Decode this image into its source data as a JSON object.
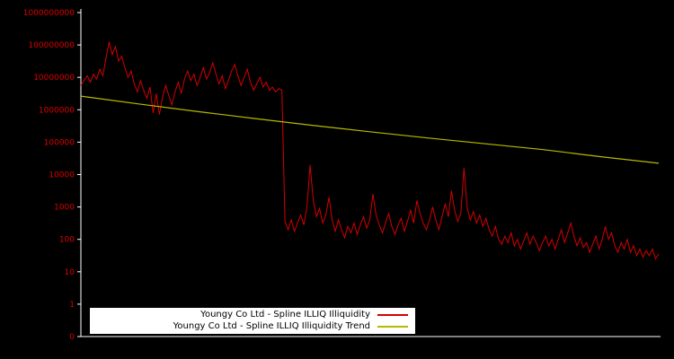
{
  "chart": {
    "background": "#000000",
    "axis_color": "#ffffff",
    "tick_label_color": "#dd0000",
    "legend": {
      "entries": [
        {
          "label": "Youngy Co Ltd - Spline ILLIQ Illiquidity",
          "color": "#d40000"
        },
        {
          "label": "Youngy Co Ltd - Spline ILLIQ Illiquidity Trend",
          "color": "#b8b800"
        }
      ]
    }
  },
  "chart_data": {
    "type": "line",
    "title": "",
    "xlabel": "",
    "ylabel": "",
    "y_scale": "log",
    "grid": false,
    "legend_position": "bottom-center",
    "y_tick_labels": [
      "0",
      "1",
      "10",
      "100",
      "1000",
      "10000",
      "100000",
      "1000000",
      "10000000",
      "100000000",
      "1000000000"
    ],
    "y_tick_values": [
      0,
      1,
      10,
      100,
      1000,
      10000,
      100000,
      1000000,
      10000000,
      100000000,
      1000000000
    ],
    "series": [
      {
        "name": "Youngy Co Ltd - Spline ILLIQ Illiquidity",
        "color": "#d40000",
        "log10_values": [
          6.75,
          6.9,
          7.05,
          6.85,
          7.1,
          6.95,
          7.25,
          7.05,
          7.6,
          8.1,
          7.7,
          7.95,
          7.5,
          7.65,
          7.3,
          7.0,
          7.2,
          6.8,
          6.55,
          6.9,
          6.6,
          6.35,
          6.7,
          5.9,
          6.5,
          5.85,
          6.4,
          6.75,
          6.45,
          6.15,
          6.55,
          6.85,
          6.5,
          6.95,
          7.2,
          6.9,
          7.1,
          6.75,
          7.0,
          7.3,
          6.95,
          7.15,
          7.45,
          7.1,
          6.8,
          7.05,
          6.65,
          6.9,
          7.2,
          7.4,
          7.05,
          6.75,
          7.0,
          7.25,
          6.85,
          6.6,
          6.8,
          7.0,
          6.7,
          6.85,
          6.6,
          6.7,
          6.55,
          6.65,
          6.6,
          2.55,
          2.3,
          2.6,
          2.25,
          2.5,
          2.75,
          2.45,
          3.0,
          4.3,
          3.2,
          2.7,
          2.95,
          2.5,
          2.75,
          3.3,
          2.6,
          2.25,
          2.6,
          2.3,
          2.05,
          2.4,
          2.2,
          2.5,
          2.15,
          2.45,
          2.7,
          2.35,
          2.6,
          3.4,
          2.75,
          2.45,
          2.2,
          2.5,
          2.8,
          2.4,
          2.15,
          2.45,
          2.65,
          2.25,
          2.55,
          2.9,
          2.5,
          3.2,
          2.8,
          2.5,
          2.3,
          2.6,
          3.0,
          2.6,
          2.3,
          2.7,
          3.1,
          2.7,
          3.5,
          2.9,
          2.55,
          2.8,
          4.2,
          3.0,
          2.6,
          2.85,
          2.5,
          2.75,
          2.4,
          2.65,
          2.3,
          2.1,
          2.4,
          2.0,
          1.85,
          2.1,
          1.9,
          2.2,
          1.8,
          2.0,
          1.7,
          1.95,
          2.2,
          1.85,
          2.1,
          1.9,
          1.65,
          1.9,
          2.1,
          1.8,
          2.0,
          1.7,
          2.0,
          2.3,
          1.9,
          2.2,
          2.5,
          2.1,
          1.8,
          2.05,
          1.75,
          1.9,
          1.6,
          1.85,
          2.1,
          1.7,
          2.0,
          2.4,
          2.0,
          2.2,
          1.8,
          1.6,
          1.9,
          1.7,
          2.0,
          1.6,
          1.8,
          1.5,
          1.7,
          1.45,
          1.65,
          1.5,
          1.7,
          1.4,
          1.55
        ]
      },
      {
        "name": "Youngy Co Ltd - Spline ILLIQ Illiquidity Trend",
        "color": "#b8b800",
        "points_xfrac_log10": [
          [
            0.0,
            6.42
          ],
          [
            0.1,
            6.18
          ],
          [
            0.2,
            5.95
          ],
          [
            0.3,
            5.73
          ],
          [
            0.4,
            5.52
          ],
          [
            0.5,
            5.32
          ],
          [
            0.6,
            5.13
          ],
          [
            0.7,
            4.95
          ],
          [
            0.8,
            4.77
          ],
          [
            0.9,
            4.55
          ],
          [
            1.0,
            4.35
          ]
        ]
      }
    ]
  }
}
